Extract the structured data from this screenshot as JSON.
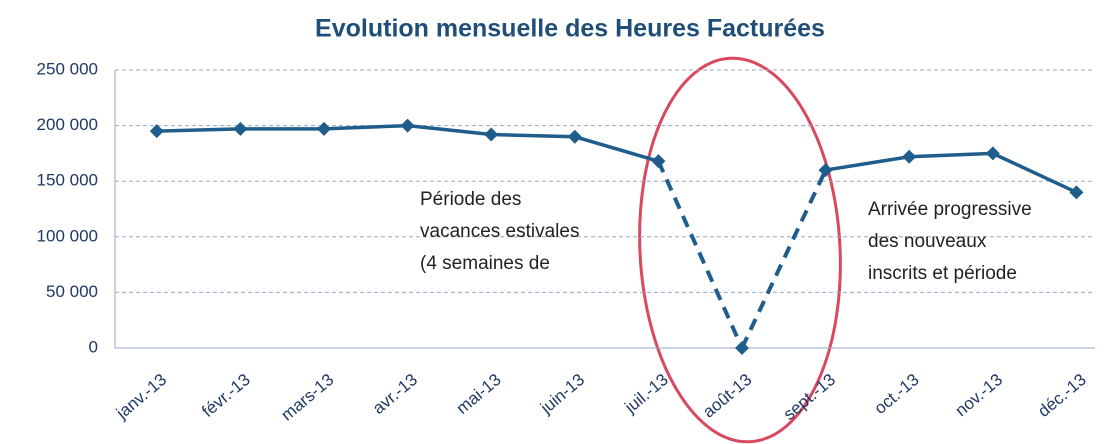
{
  "chart_data": {
    "type": "line",
    "title": "Evolution mensuelle des Heures Facturées",
    "categories": [
      "janv.-13",
      "févr.-13",
      "mars-13",
      "avr.-13",
      "mai-13",
      "juin-13",
      "juil.-13",
      "août-13",
      "sept.-13",
      "oct.-13",
      "nov.-13",
      "déc.-13"
    ],
    "series": [
      {
        "color": "#1f5d8c",
        "values": [
          195000,
          197000,
          197000,
          200000,
          192000,
          190000,
          168000,
          0,
          160000,
          172000,
          175000,
          140000
        ]
      }
    ],
    "dashed_categories": [
      "août-13"
    ],
    "ylim": [
      0,
      250000
    ],
    "yticks": [
      0,
      {
        "value": 50000,
        "label": "50 000"
      },
      {
        "value": 100000,
        "label": "100 000"
      },
      {
        "value": 150000,
        "label": "150 000"
      },
      {
        "value": 200000,
        "label": "200 000"
      },
      {
        "value": 250000,
        "label": "250 000"
      }
    ],
    "grid": true,
    "annotations": [
      {
        "lines": [
          "Période des",
          "vacances estivales",
          "(4 semaines de"
        ]
      },
      {
        "lines": [
          "Arrivée progressive",
          "des nouveaux",
          "inscrits et période"
        ]
      }
    ]
  }
}
